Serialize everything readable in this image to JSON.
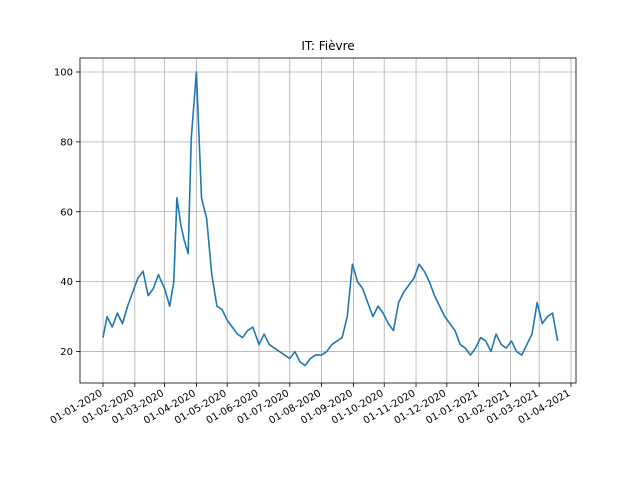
{
  "chart_data": {
    "type": "line",
    "title": "IT: Fièvre",
    "xlabel": "",
    "ylabel": "",
    "x_axis": {
      "type": "date",
      "ticks": [
        "01-01-2020",
        "01-02-2020",
        "01-03-2020",
        "01-04-2020",
        "01-05-2020",
        "01-06-2020",
        "01-07-2020",
        "01-08-2020",
        "01-09-2020",
        "01-10-2020",
        "01-11-2020",
        "01-12-2020",
        "01-01-2021",
        "01-02-2021",
        "01-03-2021",
        "01-04-2021"
      ]
    },
    "y_axis": {
      "ticks": [
        20,
        40,
        60,
        80,
        100
      ],
      "ylim": [
        11,
        104
      ]
    },
    "grid": true,
    "line_color": "#1f77b4",
    "series": [
      {
        "x": [
          "2020-01-01",
          "2020-01-05",
          "2020-01-10",
          "2020-01-15",
          "2020-01-20",
          "2020-01-25",
          "2020-01-30",
          "2020-02-04",
          "2020-02-09",
          "2020-02-14",
          "2020-02-19",
          "2020-02-24",
          "2020-03-01",
          "2020-03-06",
          "2020-03-10",
          "2020-03-13",
          "2020-03-17",
          "2020-03-20",
          "2020-03-24",
          "2020-03-27",
          "2020-04-01",
          "2020-04-06",
          "2020-04-11",
          "2020-04-16",
          "2020-04-21",
          "2020-04-26",
          "2020-05-01",
          "2020-05-06",
          "2020-05-11",
          "2020-05-16",
          "2020-05-21",
          "2020-05-26",
          "2020-06-01",
          "2020-06-06",
          "2020-06-11",
          "2020-06-16",
          "2020-06-21",
          "2020-06-26",
          "2020-07-01",
          "2020-07-06",
          "2020-07-11",
          "2020-07-16",
          "2020-07-21",
          "2020-07-26",
          "2020-08-01",
          "2020-08-06",
          "2020-08-11",
          "2020-08-16",
          "2020-08-21",
          "2020-08-26",
          "2020-08-31",
          "2020-09-05",
          "2020-09-10",
          "2020-09-15",
          "2020-09-20",
          "2020-09-25",
          "2020-09-30",
          "2020-10-05",
          "2020-10-10",
          "2020-10-15",
          "2020-10-20",
          "2020-10-25",
          "2020-10-30",
          "2020-11-04",
          "2020-11-09",
          "2020-11-14",
          "2020-11-19",
          "2020-11-24",
          "2020-11-29",
          "2020-12-04",
          "2020-12-09",
          "2020-12-14",
          "2020-12-19",
          "2020-12-24",
          "2020-12-29",
          "2021-01-03",
          "2021-01-08",
          "2021-01-13",
          "2021-01-18",
          "2021-01-23",
          "2021-01-28",
          "2021-02-02",
          "2021-02-07",
          "2021-02-12",
          "2021-02-17",
          "2021-02-22",
          "2021-02-27",
          "2021-03-04",
          "2021-03-09",
          "2021-03-14",
          "2021-03-19"
        ],
        "y": [
          24,
          30,
          27,
          31,
          28,
          33,
          37,
          41,
          43,
          36,
          38,
          42,
          38,
          33,
          40,
          64,
          56,
          52,
          48,
          81,
          100,
          64,
          58,
          42,
          33,
          32,
          29,
          27,
          25,
          24,
          26,
          27,
          22,
          25,
          22,
          21,
          20,
          19,
          18,
          20,
          17,
          16,
          18,
          19,
          19,
          20,
          22,
          23,
          24,
          30,
          45,
          40,
          38,
          34,
          30,
          33,
          31,
          28,
          26,
          34,
          37,
          39,
          41,
          45,
          43,
          40,
          36,
          33,
          30,
          28,
          26,
          22,
          21,
          19,
          21,
          24,
          23,
          20,
          25,
          22,
          21,
          23,
          20,
          19,
          22,
          25,
          34,
          28,
          30,
          31,
          23
        ]
      }
    ]
  }
}
